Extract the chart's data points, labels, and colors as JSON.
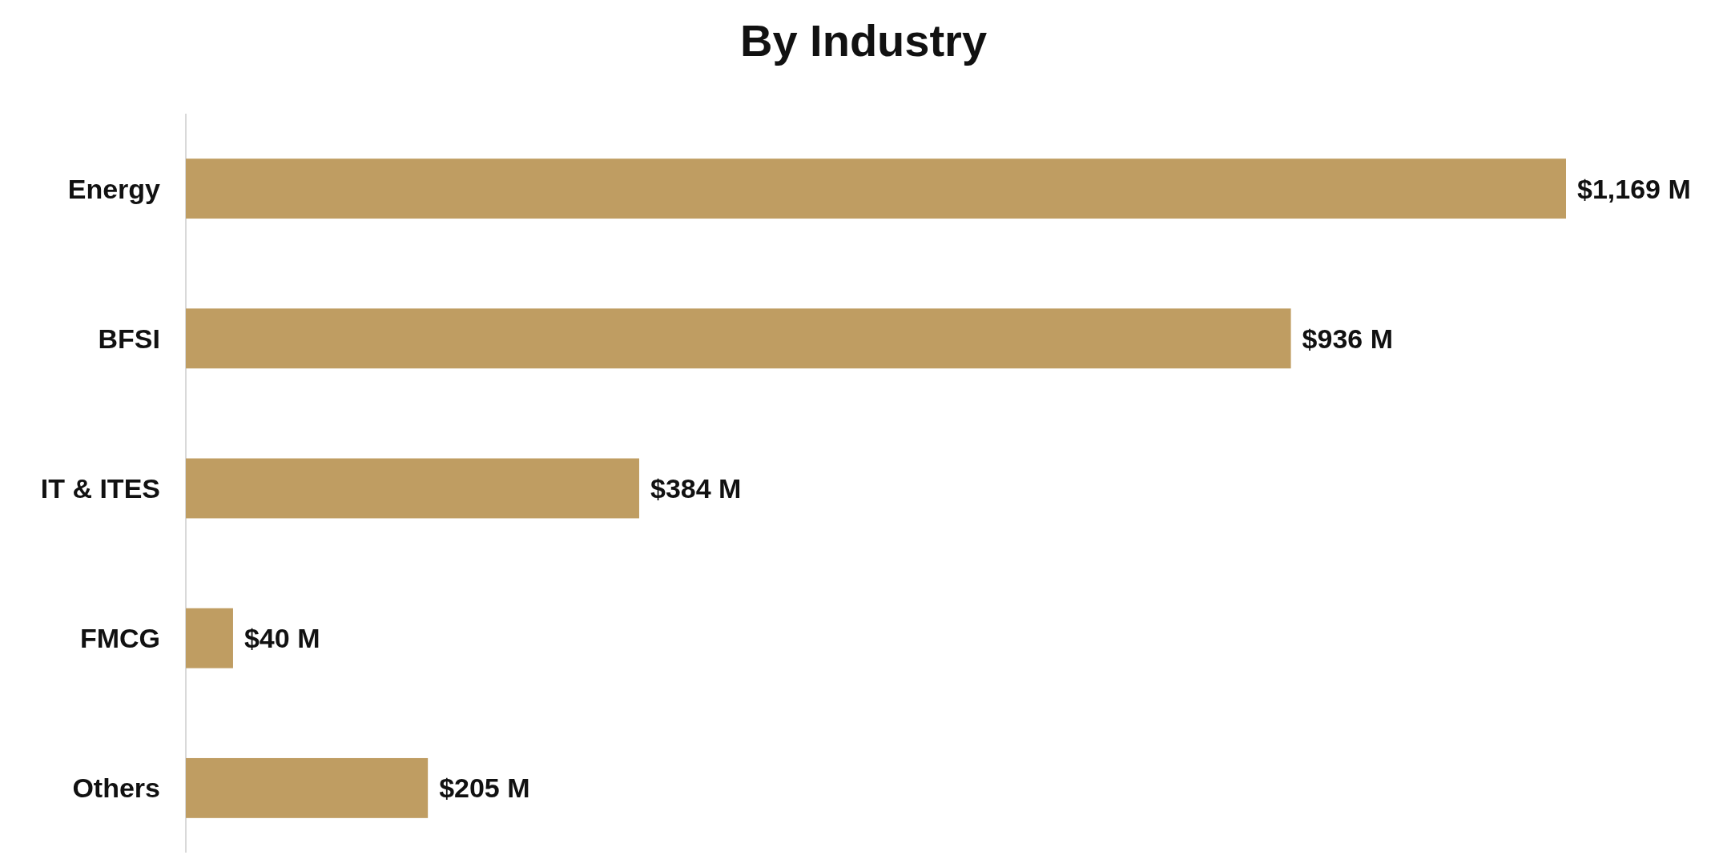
{
  "chart_data": {
    "type": "bar",
    "orientation": "horizontal",
    "title": "By Industry",
    "categories": [
      "Energy",
      "BFSI",
      "IT & ITES",
      "FMCG",
      "Others"
    ],
    "values": [
      1169,
      936,
      384,
      40,
      205
    ],
    "value_labels": [
      "$1,169 M",
      "$936 M",
      "$384 M",
      "$40 M",
      "$205 M"
    ],
    "color": "#bf9d62"
  }
}
